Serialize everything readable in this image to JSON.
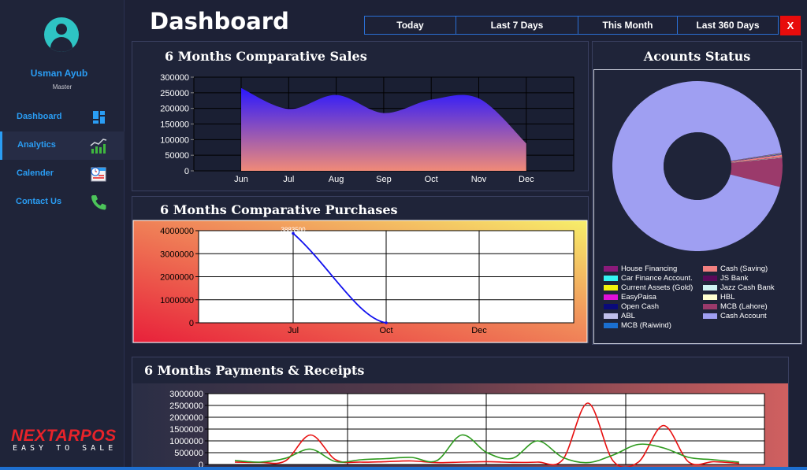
{
  "user": {
    "name": "Usman Ayub",
    "role": "Master"
  },
  "nav": [
    {
      "label": "Dashboard",
      "icon": "dashboard-grid-icon"
    },
    {
      "label": "Analytics",
      "icon": "analytics-chart-icon"
    },
    {
      "label": "Calender",
      "icon": "calendar-icon"
    },
    {
      "label": "Contact Us",
      "icon": "phone-icon"
    }
  ],
  "logo": {
    "main": "NEXTARPOS",
    "sub": "EASY TO SALE"
  },
  "header": {
    "title": "Dashboard",
    "close_label": "X"
  },
  "filters": [
    "Today",
    "Last 7 Days",
    "This Month",
    "Last 360 Days"
  ],
  "panels": {
    "sales_title": "6 Months Comparative Sales",
    "purchases_title": "6 Months Comparative Purchases",
    "payments_title": "6 Months Payments & Receipts",
    "accounts_title": "Acounts Status"
  },
  "colors": {
    "accent": "#2a9df4",
    "close": "#e80c0c",
    "background": "#1d2136"
  },
  "chart_data": [
    {
      "type": "area",
      "categories": [
        "Jun",
        "Jul",
        "Aug",
        "Sep",
        "Oct",
        "Nov",
        "Dec"
      ],
      "values": [
        265000,
        198000,
        243000,
        185000,
        228000,
        232000,
        88000
      ],
      "ylim": [
        0,
        300000
      ],
      "yticks": [
        0,
        50000,
        100000,
        150000,
        200000,
        250000,
        300000
      ],
      "grid": true
    },
    {
      "type": "line",
      "categories": [
        "Jul",
        "Oct",
        "Dec"
      ],
      "values": [
        3883500,
        0,
        null
      ],
      "data_labels": [
        "3883500"
      ],
      "ylim": [
        0,
        4000000
      ],
      "yticks": [
        0,
        1000000,
        2000000,
        3000000,
        4000000
      ],
      "grid": true
    },
    {
      "type": "line",
      "x": [
        1,
        2,
        3,
        4,
        5,
        6,
        7,
        8,
        9,
        10,
        11,
        12,
        13,
        14,
        15,
        16,
        17,
        18,
        19,
        20,
        21
      ],
      "series": [
        {
          "color": "#e81010",
          "values": [
            100000,
            90000,
            150000,
            1250000,
            200000,
            100000,
            120000,
            150000,
            80000,
            100000,
            120000,
            90000,
            100000,
            200000,
            2600000,
            150000,
            100000,
            1650000,
            100000,
            120000,
            50000
          ]
        },
        {
          "color": "#2e9a1e",
          "values": [
            170000,
            100000,
            260000,
            650000,
            120000,
            200000,
            250000,
            300000,
            160000,
            1250000,
            500000,
            260000,
            1000000,
            300000,
            80000,
            400000,
            850000,
            700000,
            300000,
            200000,
            100000
          ]
        }
      ],
      "ylim": [
        0,
        3000000
      ],
      "yticks": [
        0,
        500000,
        1000000,
        1500000,
        2000000,
        2500000,
        3000000
      ],
      "grid": true
    },
    {
      "type": "pie",
      "donut": true,
      "labels": [
        "House Financing",
        "Car Finance Account.",
        "Current Assets (Gold)",
        "EasyPaisa",
        "Open Cash",
        "ABL",
        "MCB (Raiwind)",
        "Cash (Saving)",
        "JS Bank",
        "Jazz Cash Bank",
        "HBL",
        "MCB (Lahore)",
        "Cash  Account"
      ],
      "colors": [
        "#8b1a7a",
        "#35f2f2",
        "#f2f20d",
        "#e010d8",
        "#0a0a7a",
        "#c0c0ea",
        "#1a6fd0",
        "#f28080",
        "#5a0a5a",
        "#cff2f2",
        "#ffffd0",
        "#9b3a6b",
        "#9f9ff2"
      ],
      "values": [
        0.001,
        0.0005,
        0.0005,
        0.0005,
        0.0005,
        0.0005,
        0.0005,
        0.004,
        0.0005,
        0.0005,
        0.0005,
        0.055,
        0.935
      ]
    }
  ]
}
